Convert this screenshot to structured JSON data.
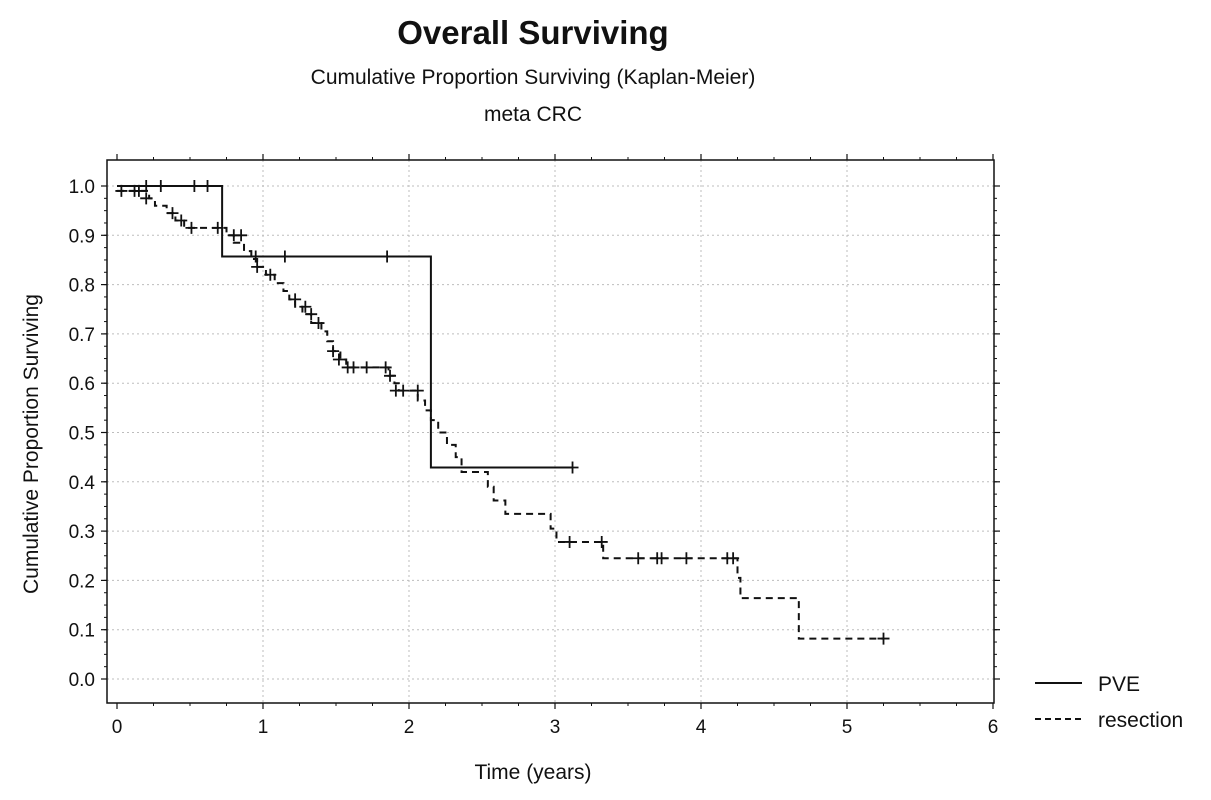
{
  "chart_data": {
    "type": "line",
    "title": "Overall Surviving",
    "subtitle": "Cumulative Proportion Surviving (Kaplan-Meier)",
    "subtitle2": "meta CRC",
    "xlabel": "Time (years)",
    "ylabel": "Cumulative Proportion Surviving",
    "xlim": [
      0,
      6
    ],
    "ylim": [
      0,
      1
    ],
    "xticks": [
      0,
      1,
      2,
      3,
      4,
      5,
      6
    ],
    "yticks": [
      0.0,
      0.1,
      0.2,
      0.3,
      0.4,
      0.5,
      0.6,
      0.7,
      0.8,
      0.9,
      1.0
    ],
    "ytick_labels": [
      "0.0",
      "0.1",
      "0.2",
      "0.3",
      "0.4",
      "0.5",
      "0.6",
      "0.7",
      "0.8",
      "0.9",
      "1.0"
    ],
    "grid": true,
    "legend_position": "bottom-right",
    "series": [
      {
        "name": "PVE",
        "style": "solid",
        "steps": [
          [
            0,
            1.0
          ],
          [
            0.72,
            0.857
          ],
          [
            2.15,
            0.429
          ],
          [
            3.12,
            0.429
          ]
        ],
        "censored": [
          [
            0.2,
            1.0
          ],
          [
            0.3,
            1.0
          ],
          [
            0.53,
            1.0
          ],
          [
            0.62,
            1.0
          ],
          [
            0.95,
            0.857
          ],
          [
            1.15,
            0.857
          ],
          [
            1.85,
            0.857
          ],
          [
            3.12,
            0.429
          ]
        ]
      },
      {
        "name": "resection",
        "style": "dashed",
        "steps": [
          [
            0,
            0.99
          ],
          [
            0.22,
            0.975
          ],
          [
            0.26,
            0.96
          ],
          [
            0.34,
            0.945
          ],
          [
            0.4,
            0.93
          ],
          [
            0.46,
            0.915
          ],
          [
            0.75,
            0.9
          ],
          [
            0.8,
            0.885
          ],
          [
            0.87,
            0.868
          ],
          [
            0.92,
            0.852
          ],
          [
            0.96,
            0.836
          ],
          [
            1.02,
            0.82
          ],
          [
            1.08,
            0.803
          ],
          [
            1.14,
            0.787
          ],
          [
            1.18,
            0.77
          ],
          [
            1.22,
            0.755
          ],
          [
            1.27,
            0.74
          ],
          [
            1.33,
            0.722
          ],
          [
            1.4,
            0.705
          ],
          [
            1.44,
            0.685
          ],
          [
            1.48,
            0.665
          ],
          [
            1.53,
            0.648
          ],
          [
            1.57,
            0.632
          ],
          [
            1.86,
            0.615
          ],
          [
            1.9,
            0.6
          ],
          [
            1.93,
            0.585
          ],
          [
            2.06,
            0.565
          ],
          [
            2.11,
            0.545
          ],
          [
            2.15,
            0.525
          ],
          [
            2.2,
            0.5
          ],
          [
            2.26,
            0.475
          ],
          [
            2.32,
            0.45
          ],
          [
            2.36,
            0.42
          ],
          [
            2.54,
            0.39
          ],
          [
            2.58,
            0.362
          ],
          [
            2.66,
            0.335
          ],
          [
            2.97,
            0.305
          ],
          [
            3.01,
            0.278
          ],
          [
            3.33,
            0.245
          ],
          [
            4.25,
            0.205
          ],
          [
            4.27,
            0.164
          ],
          [
            4.67,
            0.082
          ],
          [
            5.25,
            0.082
          ]
        ],
        "censored": [
          [
            0.03,
            0.99
          ],
          [
            0.12,
            0.99
          ],
          [
            0.15,
            0.99
          ],
          [
            0.2,
            0.975
          ],
          [
            0.38,
            0.945
          ],
          [
            0.44,
            0.93
          ],
          [
            0.51,
            0.915
          ],
          [
            0.69,
            0.915
          ],
          [
            0.8,
            0.9
          ],
          [
            0.85,
            0.9
          ],
          [
            0.96,
            0.836
          ],
          [
            1.05,
            0.82
          ],
          [
            1.22,
            0.77
          ],
          [
            1.29,
            0.755
          ],
          [
            1.33,
            0.74
          ],
          [
            1.38,
            0.722
          ],
          [
            1.48,
            0.665
          ],
          [
            1.52,
            0.648
          ],
          [
            1.58,
            0.632
          ],
          [
            1.62,
            0.632
          ],
          [
            1.71,
            0.632
          ],
          [
            1.84,
            0.632
          ],
          [
            1.87,
            0.615
          ],
          [
            1.91,
            0.585
          ],
          [
            1.96,
            0.585
          ],
          [
            2.06,
            0.585
          ],
          [
            3.1,
            0.278
          ],
          [
            3.32,
            0.278
          ],
          [
            3.57,
            0.245
          ],
          [
            3.7,
            0.245
          ],
          [
            3.73,
            0.245
          ],
          [
            3.9,
            0.245
          ],
          [
            4.18,
            0.245
          ],
          [
            4.22,
            0.245
          ],
          [
            5.25,
            0.082
          ]
        ]
      }
    ]
  }
}
